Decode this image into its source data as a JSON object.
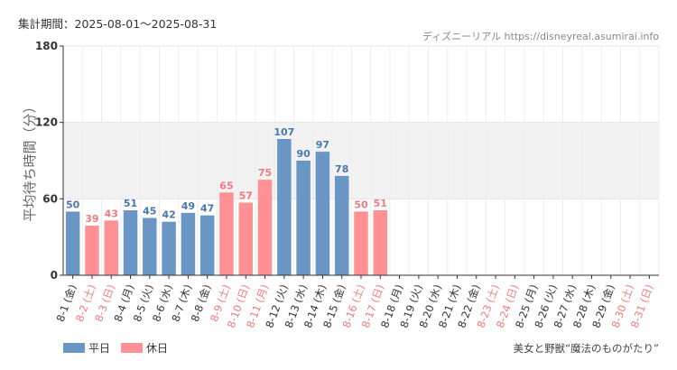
{
  "period_text": "集計期間：2025-08-01～2025-08-31",
  "credit": "ディズニーリアル https://disneyreal.asumirai.info",
  "attraction": "美女と野獣“魔法のものがたり”",
  "legend": [
    {
      "label": "平日",
      "color": "#6a96c5"
    },
    {
      "label": "休日",
      "color": "#ff9094"
    }
  ],
  "colors": {
    "weekday": "#6a96c5",
    "holiday": "#ff9094",
    "weekday_text": "#4a78ad",
    "holiday_text": "#f07a7e",
    "band": "#f2f2f2",
    "grid": "#e2e2e2",
    "axis": "#333333"
  },
  "chart_data": {
    "type": "bar",
    "title": "",
    "xlabel": "",
    "ylabel": "平均待ち時間（分）",
    "ylim": [
      0,
      180
    ],
    "yticks": [
      0,
      60,
      120,
      180
    ],
    "shaded_band": [
      60,
      120
    ],
    "grid": true,
    "legend_position": "bottom-left",
    "categories": [
      "8-1 (金)",
      "8-2 (土)",
      "8-3 (日)",
      "8-4 (月)",
      "8-5 (火)",
      "8-6 (水)",
      "8-7 (木)",
      "8-8 (金)",
      "8-9 (土)",
      "8-10 (日)",
      "8-11 (月)",
      "8-12 (火)",
      "8-13 (水)",
      "8-14 (木)",
      "8-15 (金)",
      "8-16 (土)",
      "8-17 (日)",
      "8-18 (月)",
      "8-19 (火)",
      "8-20 (水)",
      "8-21 (木)",
      "8-22 (金)",
      "8-23 (土)",
      "8-24 (日)",
      "8-25 (月)",
      "8-26 (火)",
      "8-27 (水)",
      "8-28 (木)",
      "8-29 (金)",
      "8-30 (土)",
      "8-31 (日)"
    ],
    "values": [
      50,
      39,
      43,
      51,
      45,
      42,
      49,
      47,
      65,
      57,
      75,
      107,
      90,
      97,
      78,
      50,
      51,
      null,
      null,
      null,
      null,
      null,
      null,
      null,
      null,
      null,
      null,
      null,
      null,
      null,
      null
    ],
    "day_type": [
      "平日",
      "休日",
      "休日",
      "平日",
      "平日",
      "平日",
      "平日",
      "平日",
      "休日",
      "休日",
      "休日",
      "平日",
      "平日",
      "平日",
      "平日",
      "休日",
      "休日",
      "平日",
      "平日",
      "平日",
      "平日",
      "平日",
      "休日",
      "休日",
      "平日",
      "平日",
      "平日",
      "平日",
      "平日",
      "休日",
      "休日"
    ]
  }
}
